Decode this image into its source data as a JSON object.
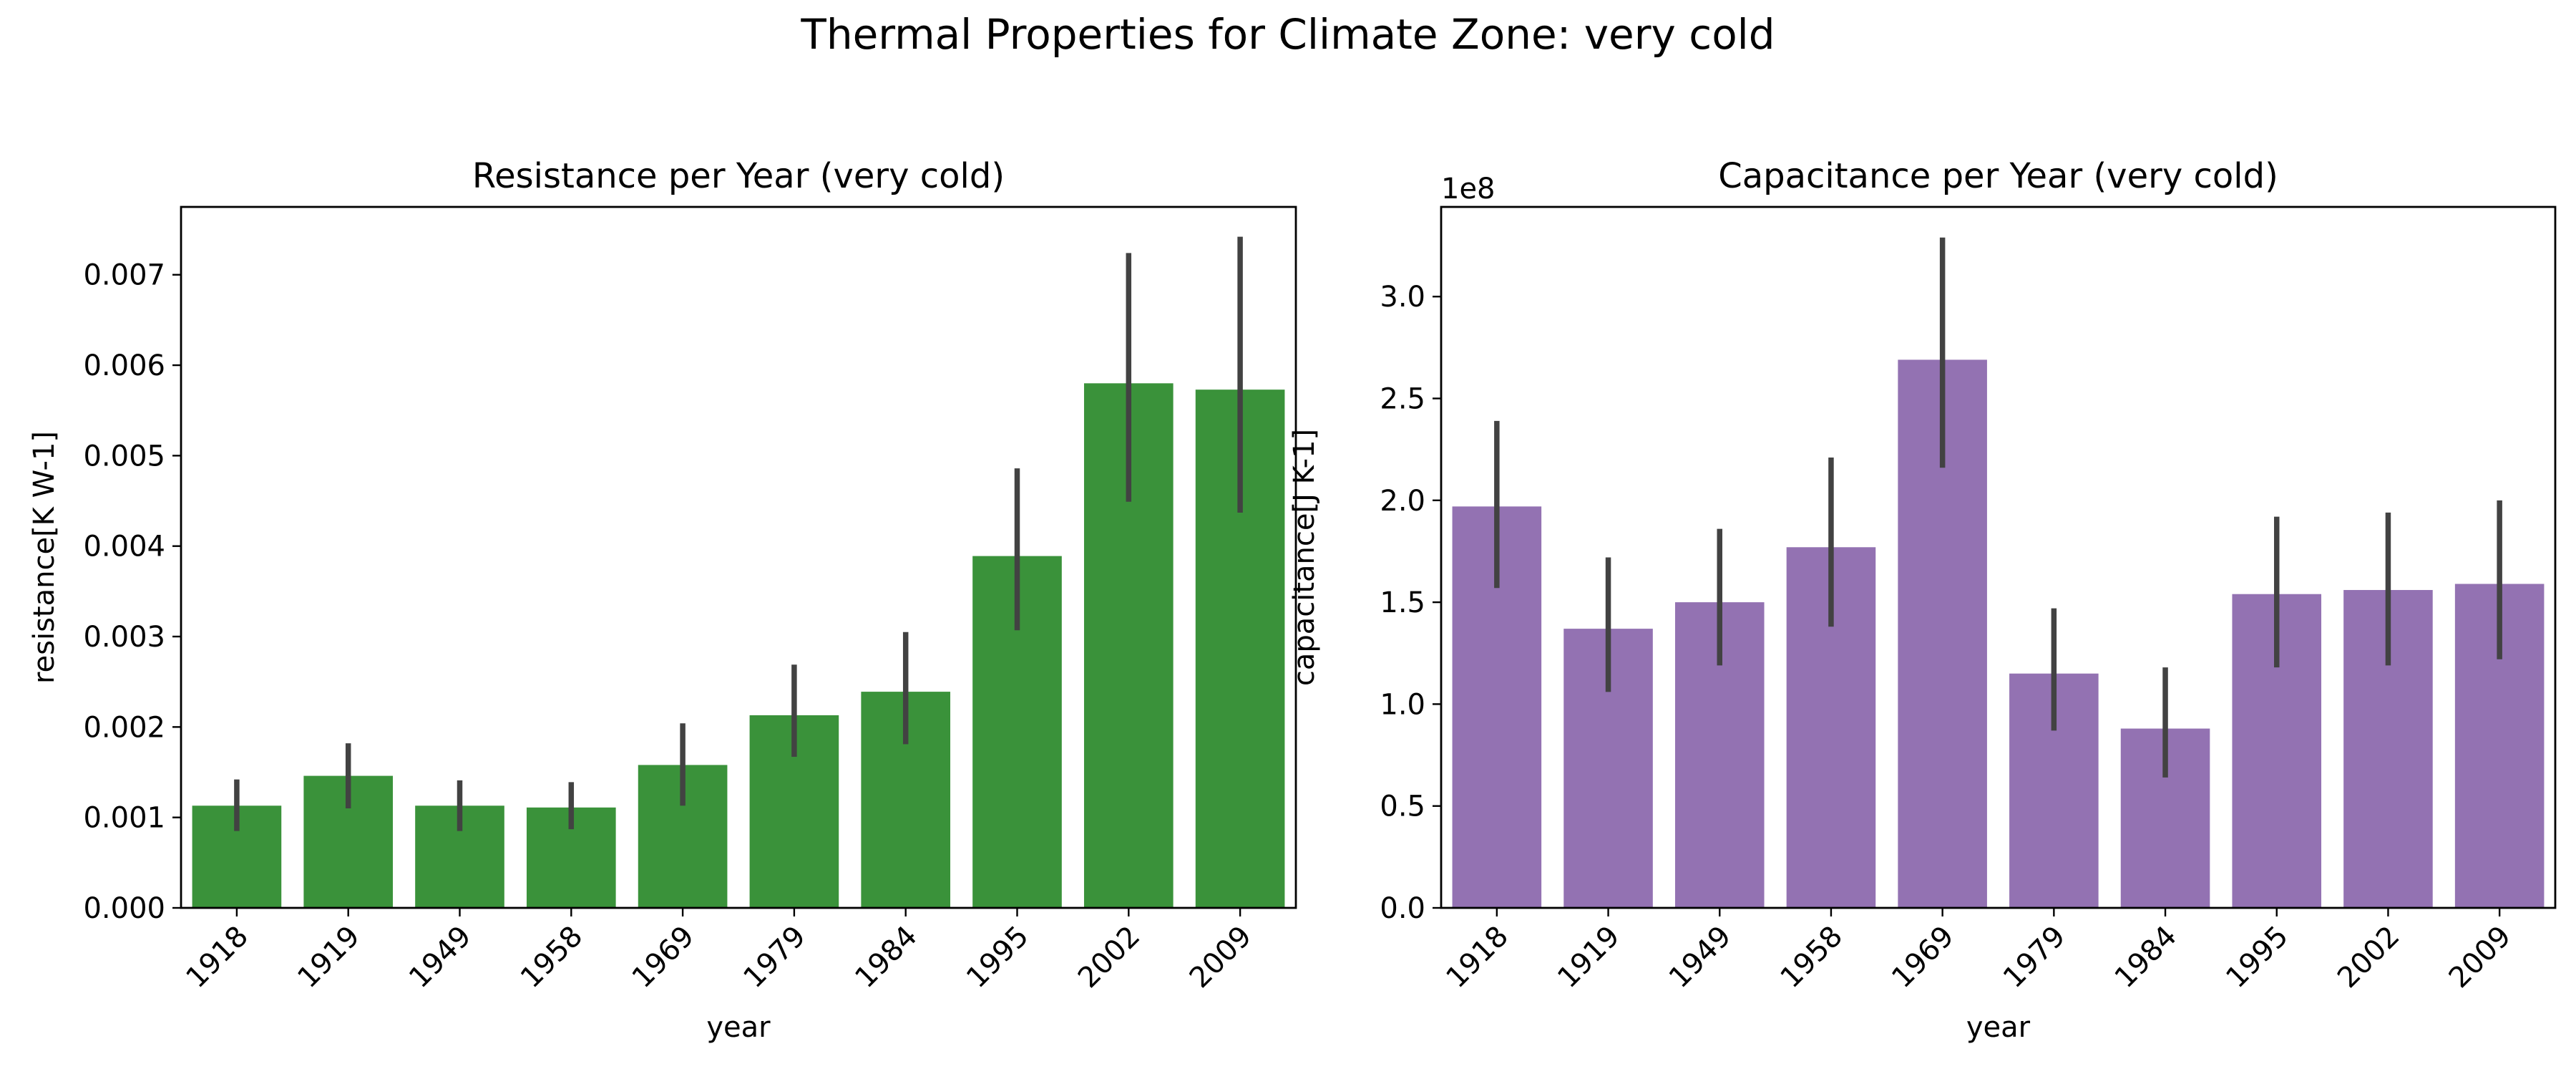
{
  "figure": {
    "suptitle": "Thermal Properties for Climate Zone: very cold"
  },
  "chart_data": [
    {
      "type": "bar",
      "title": "Resistance per Year (very cold)",
      "xlabel": "year",
      "ylabel": "resistance[K W-1]",
      "categories": [
        "1918",
        "1919",
        "1949",
        "1958",
        "1969",
        "1979",
        "1984",
        "1995",
        "2002",
        "2009"
      ],
      "values": [
        0.00113,
        0.00146,
        0.00113,
        0.00111,
        0.00158,
        0.00213,
        0.00239,
        0.00389,
        0.0058,
        0.00573
      ],
      "error_low": [
        0.00085,
        0.0011,
        0.00085,
        0.00087,
        0.00113,
        0.00167,
        0.00181,
        0.00307,
        0.00449,
        0.00437
      ],
      "error_high": [
        0.00142,
        0.00182,
        0.00141,
        0.00139,
        0.00204,
        0.00269,
        0.00305,
        0.00486,
        0.00724,
        0.00742
      ],
      "ylim": [
        0,
        0.00775
      ],
      "yticks": [
        0,
        0.001,
        0.002,
        0.003,
        0.004,
        0.005,
        0.006,
        0.007
      ],
      "ytick_labels": [
        "0.000",
        "0.001",
        "0.002",
        "0.003",
        "0.004",
        "0.005",
        "0.006",
        "0.007"
      ],
      "y_offset_label": "",
      "bar_color": "#3a923a",
      "error_color": "#424242",
      "grid": false,
      "legend": "none"
    },
    {
      "type": "bar",
      "title": "Capacitance per Year (very cold)",
      "xlabel": "year",
      "ylabel": "capacitance[J K-1]",
      "categories": [
        "1918",
        "1919",
        "1949",
        "1958",
        "1969",
        "1979",
        "1984",
        "1995",
        "2002",
        "2009"
      ],
      "values": [
        1.97,
        1.37,
        1.5,
        1.77,
        2.69,
        1.15,
        0.88,
        1.54,
        1.56,
        1.59
      ],
      "error_low": [
        1.57,
        1.06,
        1.19,
        1.38,
        2.16,
        0.87,
        0.64,
        1.18,
        1.19,
        1.22
      ],
      "error_high": [
        2.39,
        1.72,
        1.86,
        2.21,
        3.29,
        1.47,
        1.18,
        1.92,
        1.94,
        2.0
      ],
      "ylim": [
        0,
        3.44
      ],
      "yticks": [
        0,
        0.5,
        1.0,
        1.5,
        2.0,
        2.5,
        3.0
      ],
      "ytick_labels": [
        "0.0",
        "0.5",
        "1.0",
        "1.5",
        "2.0",
        "2.5",
        "3.0"
      ],
      "y_offset_label": "1e8",
      "bar_color": "#9372b2",
      "error_color": "#424242",
      "grid": false,
      "legend": "none"
    }
  ]
}
